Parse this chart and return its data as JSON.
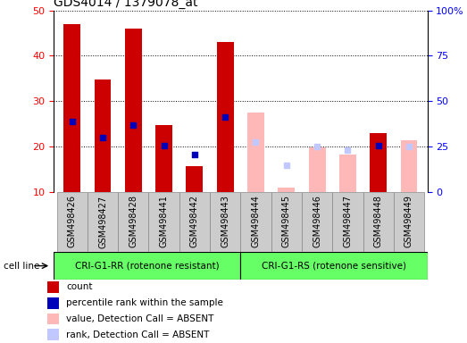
{
  "title": "GDS4014 / 1379078_at",
  "samples": [
    "GSM498426",
    "GSM498427",
    "GSM498428",
    "GSM498441",
    "GSM498442",
    "GSM498443",
    "GSM498444",
    "GSM498445",
    "GSM498446",
    "GSM498447",
    "GSM498448",
    "GSM498449"
  ],
  "count_values": [
    47.0,
    34.8,
    46.0,
    24.7,
    15.7,
    43.0,
    null,
    null,
    null,
    null,
    23.0,
    null
  ],
  "rank_values": [
    25.5,
    22.0,
    24.8,
    20.2,
    18.2,
    26.5,
    null,
    null,
    null,
    null,
    20.2,
    null
  ],
  "absent_value_values": [
    null,
    null,
    null,
    null,
    null,
    null,
    27.5,
    11.0,
    19.8,
    18.2,
    null,
    21.5
  ],
  "absent_rank_values": [
    null,
    null,
    null,
    null,
    null,
    null,
    21.0,
    16.0,
    20.0,
    19.2,
    null,
    20.0
  ],
  "group1_count": 6,
  "group2_count": 6,
  "group1_label": "CRI-G1-RR (rotenone resistant)",
  "group2_label": "CRI-G1-RS (rotenone sensitive)",
  "cell_line_label": "cell line",
  "ylim_left": [
    10,
    50
  ],
  "ylim_right": [
    0,
    100
  ],
  "yticks_left": [
    10,
    20,
    30,
    40,
    50
  ],
  "yticks_right": [
    0,
    25,
    50,
    75,
    100
  ],
  "ytick_labels_right": [
    "0",
    "25",
    "50",
    "75",
    "100%"
  ],
  "count_color": "#cc0000",
  "rank_color": "#0000bb",
  "absent_value_color": "#ffb8b8",
  "absent_rank_color": "#c0c8ff",
  "group1_bg": "#cccccc",
  "group2_bg": "#cccccc",
  "group_band_color": "#66ff66",
  "grid_color": "#000000",
  "background_color": "#ffffff",
  "title_fontsize": 10,
  "tick_fontsize": 8,
  "label_fontsize": 7,
  "legend_fontsize": 7.5
}
